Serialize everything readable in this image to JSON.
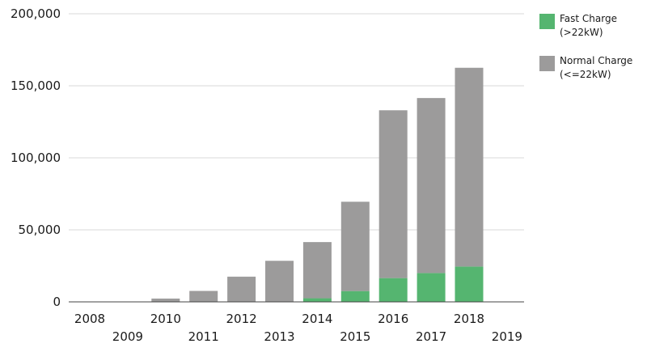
{
  "chart_data": {
    "type": "bar",
    "stacked": true,
    "categories": [
      "2008",
      "2009",
      "2010",
      "2011",
      "2012",
      "2013",
      "2014",
      "2015",
      "2016",
      "2017",
      "2018",
      "2019"
    ],
    "series": [
      {
        "name": "Fast Charge\n(>22kW)",
        "color": "#55b570",
        "values": [
          0,
          0,
          0,
          0,
          0,
          0,
          2500,
          7500,
          16500,
          20000,
          24500,
          0
        ]
      },
      {
        "name": "Normal Charge\n(<=22kW)",
        "color": "#9c9b9b",
        "values": [
          0,
          0,
          2300,
          7600,
          17500,
          28500,
          39000,
          62000,
          116500,
          121500,
          138000,
          0
        ]
      }
    ],
    "ylim": [
      0,
      200000
    ],
    "yticks": [
      "0",
      "50,000",
      "100,000",
      "150,000",
      "200,000"
    ],
    "ytick_values": [
      0,
      50000,
      100000,
      150000,
      200000
    ],
    "grid": true,
    "legend_position": "right"
  }
}
